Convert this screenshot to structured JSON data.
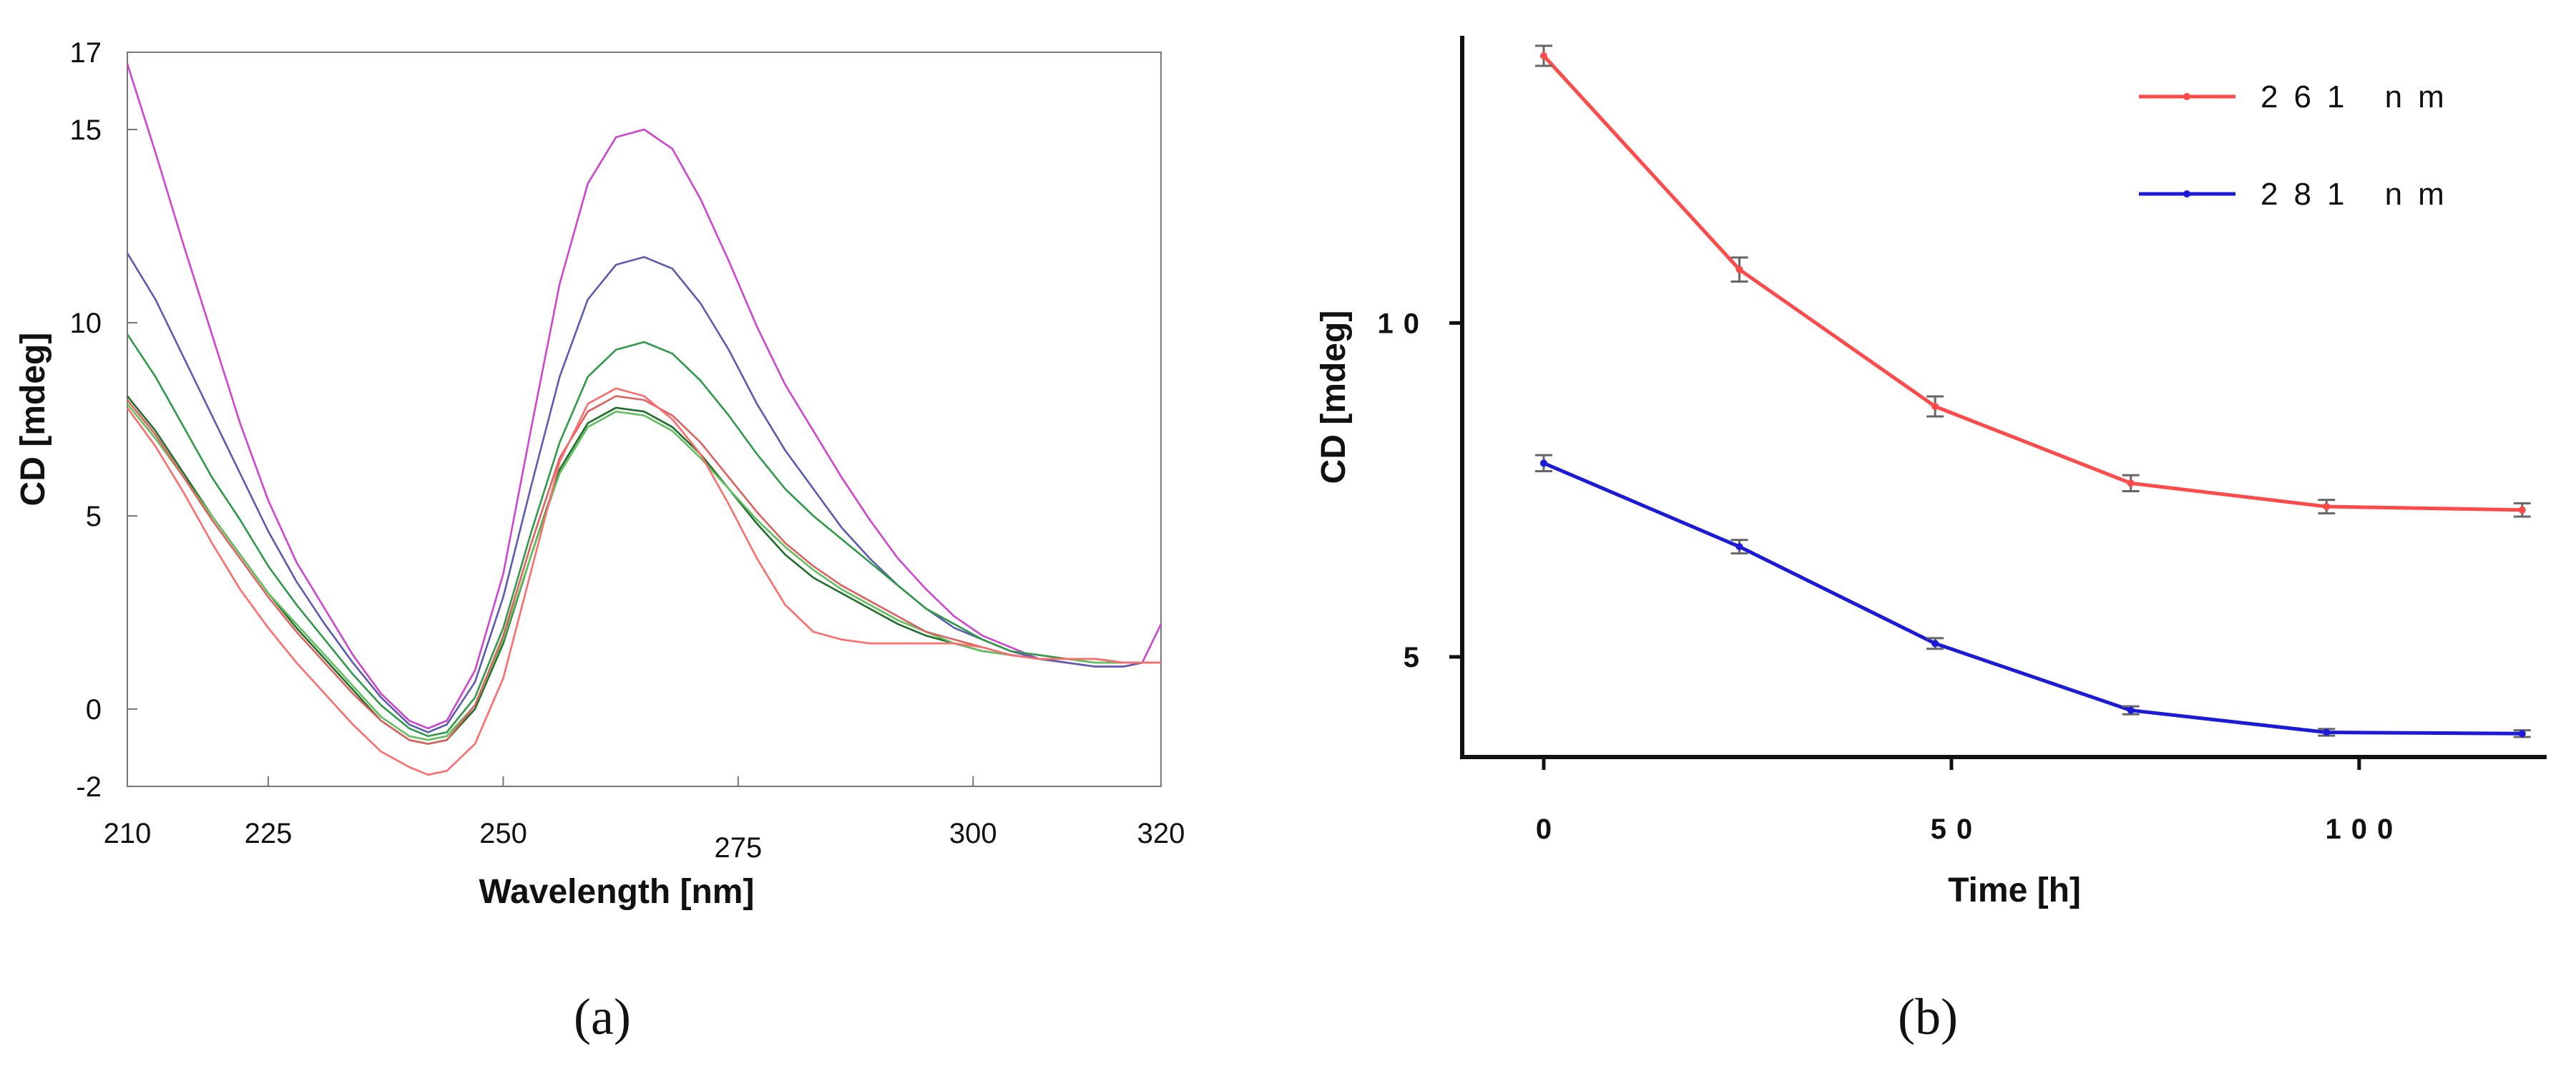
{
  "panels": {
    "a": {
      "label": "(a)"
    },
    "b": {
      "label": "(b)"
    }
  },
  "chart_data": [
    {
      "type": "line",
      "xlabel": "Wavelength [nm]",
      "ylabel": "CD [mdeg]",
      "xlim": [
        210,
        320
      ],
      "ylim": [
        -2,
        17
      ],
      "xticks": [
        {
          "value": 210,
          "label": "210"
        },
        {
          "value": 225,
          "label": "225"
        },
        {
          "value": 250,
          "label": "250"
        },
        {
          "value": 275,
          "label": "275"
        },
        {
          "value": 300,
          "label": "300"
        },
        {
          "value": 320,
          "label": "320"
        }
      ],
      "yticks": [
        {
          "value": -2,
          "label": "-2"
        },
        {
          "value": 0,
          "label": "0"
        },
        {
          "value": 5,
          "label": "5"
        },
        {
          "value": 10,
          "label": "10"
        },
        {
          "value": 15,
          "label": "15"
        },
        {
          "value": 17,
          "label": "17"
        }
      ],
      "grid": false,
      "x": [
        210,
        213,
        216,
        219,
        222,
        225,
        228,
        231,
        234,
        237,
        240,
        242,
        244,
        247,
        250,
        253,
        256,
        259,
        262,
        265,
        268,
        271,
        274,
        277,
        280,
        283,
        286,
        289,
        292,
        295,
        298,
        301,
        304,
        307,
        310,
        313,
        316,
        318,
        320
      ],
      "series": [
        {
          "color": "#d044d0",
          "values": [
            16.7,
            14.4,
            12.0,
            9.7,
            7.4,
            5.4,
            3.8,
            2.6,
            1.4,
            0.4,
            -0.3,
            -0.5,
            -0.3,
            1.0,
            3.5,
            7.3,
            11.0,
            13.6,
            14.8,
            15.0,
            14.5,
            13.2,
            11.6,
            9.9,
            8.4,
            7.2,
            6.0,
            4.9,
            3.9,
            3.1,
            2.4,
            1.9,
            1.6,
            1.3,
            1.2,
            1.1,
            1.1,
            1.2,
            2.2
          ]
        },
        {
          "color": "#5b5bb0",
          "values": [
            11.8,
            10.6,
            9.1,
            7.6,
            6.1,
            4.6,
            3.3,
            2.2,
            1.2,
            0.3,
            -0.4,
            -0.6,
            -0.4,
            0.7,
            2.9,
            5.8,
            8.6,
            10.6,
            11.5,
            11.7,
            11.4,
            10.5,
            9.3,
            7.9,
            6.7,
            5.7,
            4.7,
            3.9,
            3.2,
            2.6,
            2.1,
            1.8,
            1.5,
            1.3,
            1.2,
            1.1,
            1.1,
            1.2,
            1.2
          ]
        },
        {
          "color": "#2e9a4a",
          "values": [
            9.7,
            8.6,
            7.3,
            6.0,
            4.9,
            3.7,
            2.7,
            1.8,
            0.9,
            0.1,
            -0.5,
            -0.7,
            -0.6,
            0.3,
            2.1,
            4.6,
            6.9,
            8.6,
            9.3,
            9.5,
            9.2,
            8.5,
            7.6,
            6.6,
            5.7,
            5.0,
            4.4,
            3.8,
            3.2,
            2.6,
            2.2,
            1.8,
            1.5,
            1.4,
            1.3,
            1.2,
            1.2,
            1.2,
            1.2
          ]
        },
        {
          "color": "#1f6e2c",
          "values": [
            8.1,
            7.2,
            6.1,
            5.0,
            4.0,
            3.0,
            2.1,
            1.3,
            0.5,
            -0.3,
            -0.8,
            -0.9,
            -0.8,
            0.0,
            1.7,
            4.0,
            6.2,
            7.4,
            7.8,
            7.7,
            7.3,
            6.6,
            5.7,
            4.8,
            4.0,
            3.4,
            3.0,
            2.6,
            2.2,
            1.9,
            1.7,
            1.5,
            1.4,
            1.3,
            1.3,
            1.3,
            1.2,
            1.2,
            1.2
          ]
        },
        {
          "color": "#60c060",
          "values": [
            7.9,
            7.0,
            6.0,
            5.0,
            4.0,
            3.0,
            2.2,
            1.4,
            0.6,
            -0.2,
            -0.7,
            -0.8,
            -0.7,
            0.1,
            1.8,
            4.0,
            6.1,
            7.3,
            7.7,
            7.6,
            7.2,
            6.5,
            5.7,
            4.9,
            4.2,
            3.6,
            3.1,
            2.7,
            2.3,
            2.0,
            1.7,
            1.5,
            1.4,
            1.3,
            1.3,
            1.2,
            1.2,
            1.2,
            1.2
          ]
        },
        {
          "color": "#e06060",
          "values": [
            8.0,
            7.1,
            6.0,
            4.9,
            3.9,
            2.9,
            2.0,
            1.2,
            0.4,
            -0.3,
            -0.8,
            -0.9,
            -0.8,
            0.1,
            1.9,
            4.3,
            6.5,
            7.7,
            8.1,
            8.0,
            7.6,
            6.9,
            6.0,
            5.1,
            4.3,
            3.7,
            3.2,
            2.8,
            2.4,
            2.0,
            1.8,
            1.6,
            1.4,
            1.3,
            1.3,
            1.3,
            1.2,
            1.2,
            1.2
          ]
        },
        {
          "color": "#ff6c6c",
          "values": [
            7.8,
            6.8,
            5.6,
            4.3,
            3.1,
            2.1,
            1.2,
            0.4,
            -0.4,
            -1.1,
            -1.5,
            -1.7,
            -1.6,
            -0.9,
            0.8,
            3.6,
            6.4,
            7.9,
            8.3,
            8.1,
            7.5,
            6.6,
            5.3,
            3.9,
            2.7,
            2.0,
            1.8,
            1.7,
            1.7,
            1.7,
            1.7,
            1.6,
            1.4,
            1.3,
            1.3,
            1.3,
            1.2,
            1.2,
            1.2
          ]
        }
      ]
    },
    {
      "type": "line",
      "xlabel": "Time [h]",
      "ylabel": "CD [mdeg]",
      "xlim": [
        -10,
        123
      ],
      "ylim": [
        3.5,
        14.3
      ],
      "xticks": [
        {
          "value": 0,
          "label": "0"
        },
        {
          "value": 50,
          "label": "50"
        },
        {
          "value": 100,
          "label": "100"
        }
      ],
      "yticks": [
        {
          "value": 5,
          "label": "5"
        },
        {
          "value": 10,
          "label": "10"
        }
      ],
      "grid": false,
      "legend_position": "top-right",
      "x": [
        0,
        24,
        48,
        72,
        96,
        120
      ],
      "series": [
        {
          "name": "261 nm",
          "color": "#ff4a4a",
          "values": [
            14.0,
            10.8,
            8.75,
            7.6,
            7.25,
            7.2
          ],
          "error": [
            0.15,
            0.18,
            0.15,
            0.12,
            0.1,
            0.1
          ]
        },
        {
          "name": "281 nm",
          "color": "#1a1ad8",
          "values": [
            7.9,
            6.65,
            5.2,
            4.2,
            3.87,
            3.85
          ],
          "error": [
            0.12,
            0.1,
            0.08,
            0.06,
            0.05,
            0.05
          ]
        }
      ]
    }
  ]
}
